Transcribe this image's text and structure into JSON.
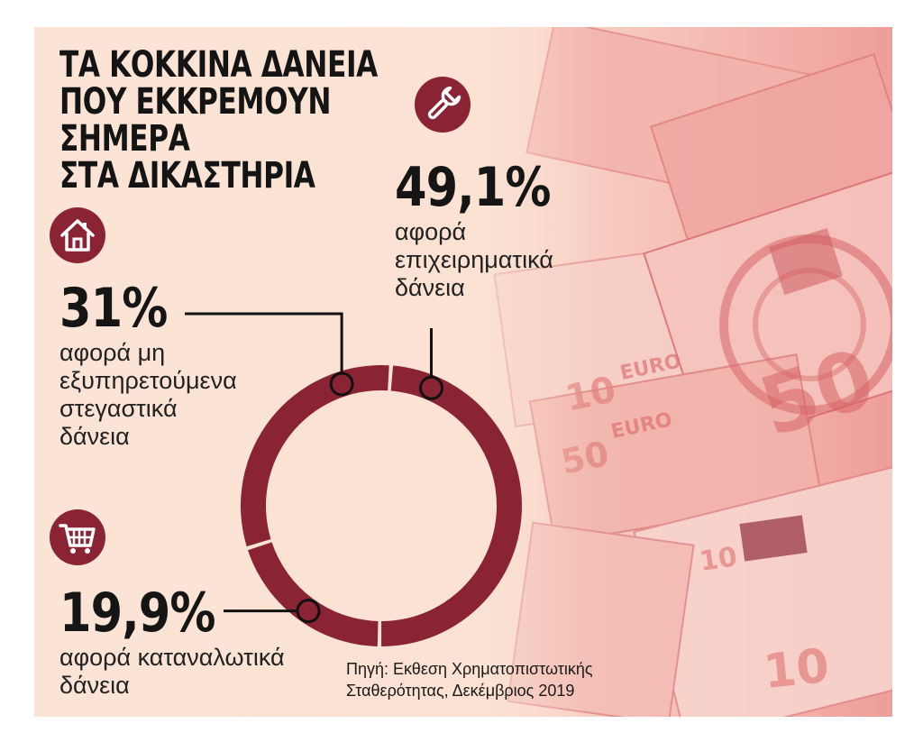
{
  "title_lines": [
    "ΤΑ ΚΟΚΚΙΝΑ ΔΑΝΕΙΑ",
    "ΠΟΥ ΕΚΚΡΕΜΟΥΝ",
    "ΣΗΜΕΡΑ",
    "ΣΤΑ ΔΙΚΑΣΤΗΡΙΑ"
  ],
  "source_lines": [
    "Πηγή: Εκθεση Χρηματοπιστωτικής",
    "Σταθερότητας, Δεκέμβριος 2019"
  ],
  "colors": {
    "accent": "#8a2434",
    "text": "#151515"
  },
  "chart_data": {
    "type": "pie",
    "style": "donut",
    "categories": [
      "επιχειρηματικά δάνεια",
      "καταναλωτικά δάνεια",
      "μη εξυπηρετούμενα στεγαστικά δάνεια"
    ],
    "values": [
      49.1,
      19.9,
      31
    ],
    "segments": [
      {
        "value": 49.1,
        "value_label": "49,1%",
        "icon": "wrench-icon",
        "desc_lines": [
          "αφορά",
          "επιχειρηματικά",
          "δάνεια"
        ]
      },
      {
        "value": 19.9,
        "value_label": "19,9%",
        "icon": "shopping-cart-icon",
        "desc_lines": [
          "αφορά καταναλωτικά",
          "δάνεια"
        ]
      },
      {
        "value": 31,
        "value_label": "31%",
        "icon": "house-icon",
        "desc_lines": [
          "αφορά μη",
          "εξυπηρετούμενα",
          "στεγαστικά",
          "δάνεια"
        ]
      }
    ]
  }
}
